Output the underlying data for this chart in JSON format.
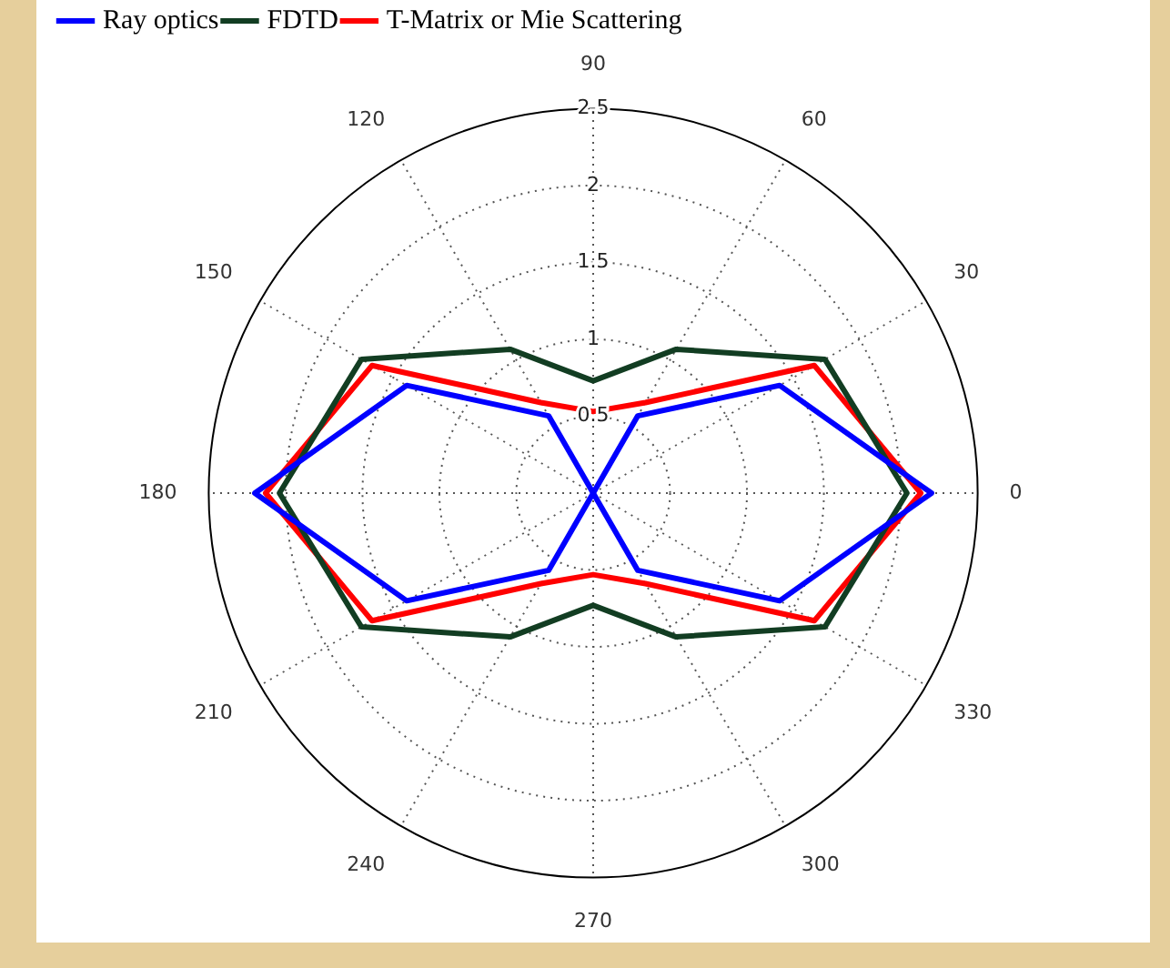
{
  "chart_data": {
    "type": "radar",
    "categories": [
      "90",
      "60",
      "30",
      "0",
      "330",
      "300",
      "270",
      "240",
      "210",
      "180",
      "150",
      "120"
    ],
    "ylim": [
      0,
      2.5
    ],
    "yticks": [
      0.5,
      1,
      1.5,
      2,
      2.5
    ],
    "grid": true,
    "legend": "top left",
    "marker": "none",
    "line_style": "solid",
    "series": [
      {
        "name": "Ray optics",
        "color": "#0000ff",
        "values": [
          0,
          0.58,
          1.4,
          2.2,
          1.4,
          0.58,
          0,
          0.58,
          1.4,
          2.2,
          1.4,
          0.58
        ]
      },
      {
        "name": "FDTD",
        "color": "#123d22",
        "values": [
          0.73,
          1.08,
          1.74,
          2.04,
          1.74,
          1.08,
          0.73,
          1.08,
          1.74,
          2.04,
          1.74,
          1.08
        ]
      },
      {
        "name": "T-Matrix or Mie Scattering",
        "color": "#ff0000",
        "values": [
          0.53,
          0.68,
          1.66,
          2.13,
          1.66,
          0.68,
          0.53,
          0.68,
          1.66,
          2.13,
          1.66,
          0.68
        ]
      }
    ]
  }
}
